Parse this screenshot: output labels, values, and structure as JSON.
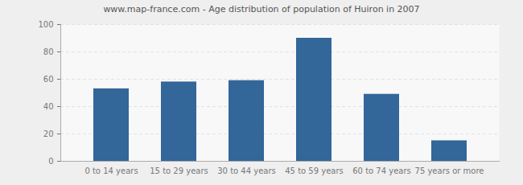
{
  "chart_data": {
    "type": "bar",
    "title": "www.map-france.com - Age distribution of population of Huiron in 2007",
    "categories": [
      "0 to 14 years",
      "15 to 29 years",
      "30 to 44 years",
      "45 to 59 years",
      "60 to 74 years",
      "75 years or more"
    ],
    "values": [
      53,
      58,
      59,
      90,
      49,
      15
    ],
    "color": "#336699",
    "ylim": [
      0,
      100
    ],
    "yticks": [
      0,
      20,
      40,
      60,
      80,
      100
    ],
    "grid": true
  }
}
